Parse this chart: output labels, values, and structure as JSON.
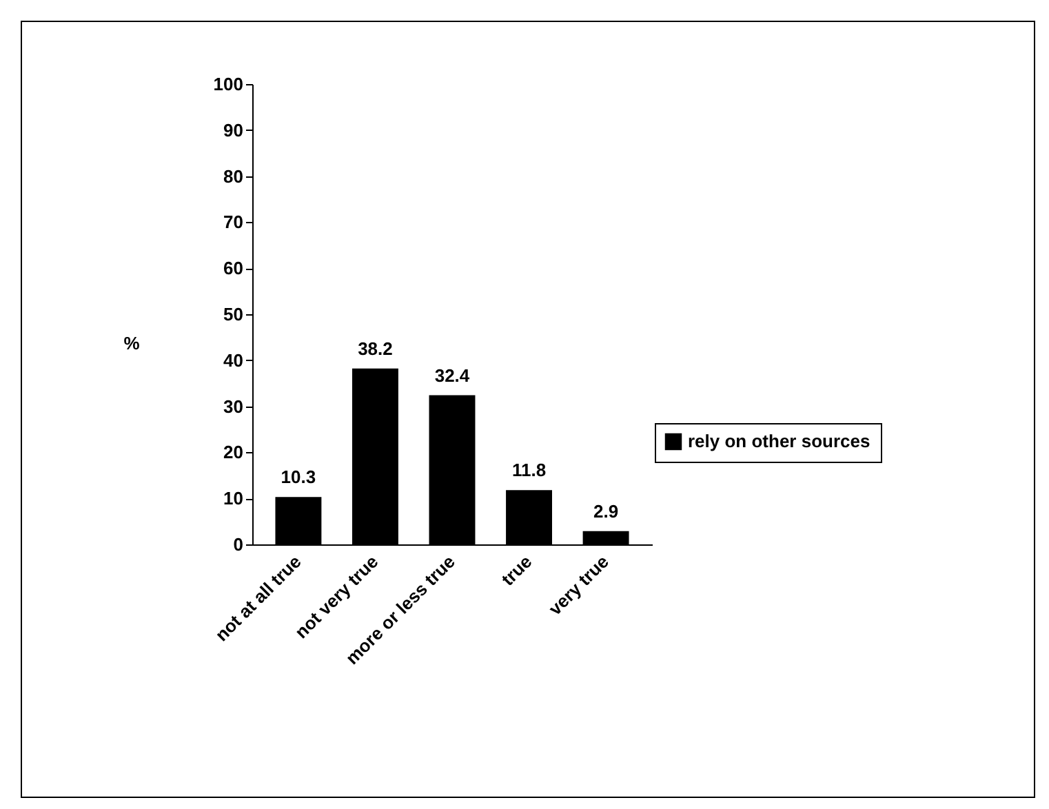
{
  "chart_data": {
    "type": "bar",
    "ylabel": "%",
    "categories": [
      "not at all true",
      "not very true",
      "more or less true",
      "true",
      "very true"
    ],
    "series": [
      {
        "name": "rely on other sources",
        "color": "#000000",
        "values": [
          10.3,
          38.2,
          32.4,
          11.8,
          2.9
        ]
      }
    ],
    "ylim": [
      0,
      100
    ],
    "yticks": [
      0,
      10,
      20,
      30,
      40,
      50,
      60,
      70,
      80,
      90,
      100
    ],
    "data_labels": true,
    "legend": "right",
    "grid": false
  }
}
